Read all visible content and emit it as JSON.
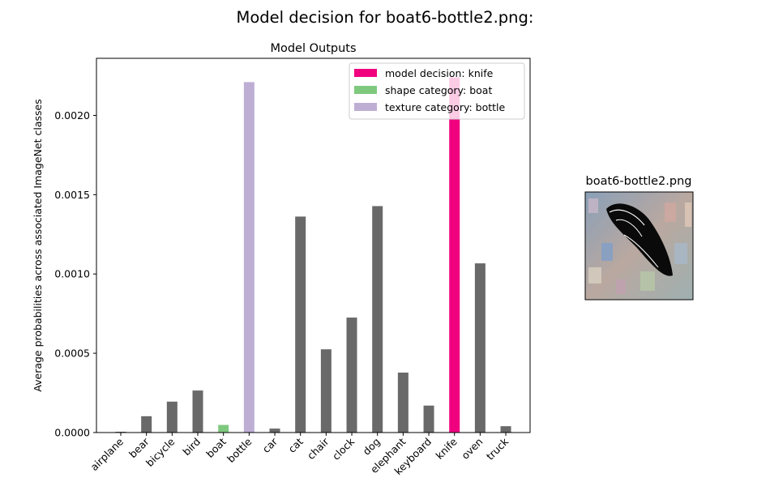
{
  "figure": {
    "suptitle": "Model decision for boat6-bottle2.png:"
  },
  "chart_data": {
    "type": "bar",
    "title": "Model Outputs",
    "xlabel": "",
    "ylabel": "Average probabilities across associated ImageNet classes",
    "ylim": [
      0,
      0.00236
    ],
    "yticks": [
      0.0,
      0.0005,
      0.001,
      0.0015,
      0.002
    ],
    "ytick_labels": [
      "0.0000",
      "0.0005",
      "0.0010",
      "0.0015",
      "0.0020"
    ],
    "categories": [
      "airplane",
      "bear",
      "bicycle",
      "bird",
      "boat",
      "bottle",
      "car",
      "cat",
      "chair",
      "clock",
      "dog",
      "elephant",
      "keyboard",
      "knife",
      "oven",
      "truck"
    ],
    "values": [
      5e-06,
      0.000103,
      0.000195,
      0.000265,
      4.8e-05,
      0.00221,
      2.5e-05,
      0.001362,
      0.000525,
      0.000725,
      0.001428,
      0.000378,
      0.00017,
      0.00224,
      0.001067,
      4e-05
    ],
    "colors": [
      "#696969",
      "#696969",
      "#696969",
      "#696969",
      "#7fc97f",
      "#beaed4",
      "#696969",
      "#696969",
      "#696969",
      "#696969",
      "#696969",
      "#696969",
      "#696969",
      "#f0027f",
      "#696969",
      "#696969"
    ],
    "grid": false,
    "legend_position": "top-right",
    "legend": [
      {
        "label": "model decision: knife",
        "color": "#f0027f"
      },
      {
        "label": "shape category: boat",
        "color": "#7fc97f"
      },
      {
        "label": "texture category: bottle",
        "color": "#beaed4"
      }
    ]
  },
  "stimulus": {
    "title": "boat6-bottle2.png"
  }
}
